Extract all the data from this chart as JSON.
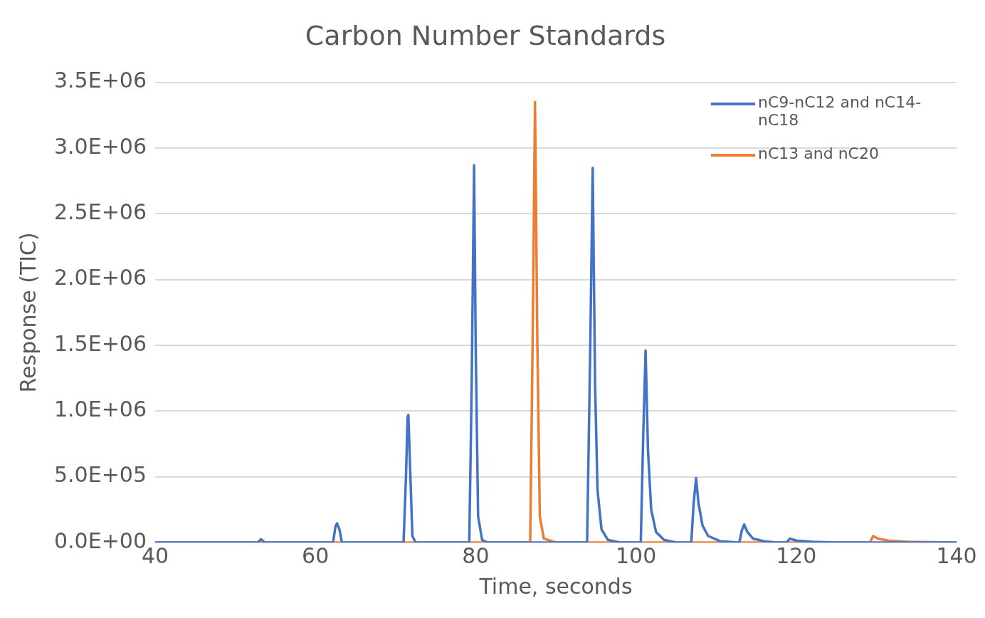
{
  "chart_data": {
    "type": "line",
    "title": "Carbon Number Standards",
    "xlabel": "Time, seconds",
    "ylabel": "Response (TIC)",
    "xlim": [
      40,
      140
    ],
    "xticks": [
      40,
      60,
      80,
      100,
      120,
      140
    ],
    "ylim": [
      0,
      3500000
    ],
    "yticks": [
      {
        "value": 0,
        "label": "0.0E+00"
      },
      {
        "value": 500000,
        "label": "5.0E+05"
      },
      {
        "value": 1000000,
        "label": "1.0E+06"
      },
      {
        "value": 1500000,
        "label": "1.5E+06"
      },
      {
        "value": 2000000,
        "label": "2.0E+06"
      },
      {
        "value": 2500000,
        "label": "2.5E+06"
      },
      {
        "value": 3000000,
        "label": "3.0E+06"
      },
      {
        "value": 3500000,
        "label": "3.5E+06"
      }
    ],
    "grid": "y",
    "legend": "top right",
    "marker": "none",
    "line_style": "solid",
    "series": [
      {
        "name": "nC9-nC12 and nC14-nC18",
        "color": "#4472c4",
        "x": [
          40,
          52.8,
          53.2,
          53.7,
          62.2,
          62.5,
          62.7,
          63.0,
          63.3,
          71.0,
          71.3,
          71.5,
          71.6,
          71.8,
          72.1,
          72.5,
          79.2,
          79.5,
          79.8,
          80.0,
          80.3,
          80.8,
          81.5,
          93.9,
          94.3,
          94.6,
          94.9,
          95.2,
          95.7,
          96.5,
          98,
          100.6,
          100.9,
          101.2,
          101.5,
          101.9,
          102.5,
          103.5,
          105,
          106.9,
          107.2,
          107.5,
          107.8,
          108.3,
          109,
          110.5,
          112.9,
          113.2,
          113.5,
          113.9,
          114.6,
          116,
          117.5,
          118.8,
          119.2,
          120,
          122,
          125,
          140
        ],
        "values": [
          0,
          0,
          25000,
          0,
          0,
          120000,
          146000,
          100000,
          0,
          0,
          500000,
          950000,
          970000,
          600000,
          50000,
          0,
          0,
          1200000,
          2870000,
          1500000,
          200000,
          20000,
          0,
          0,
          1500000,
          2850000,
          1200000,
          400000,
          100000,
          20000,
          0,
          0,
          800000,
          1460000,
          700000,
          250000,
          80000,
          20000,
          0,
          0,
          300000,
          490000,
          300000,
          130000,
          50000,
          10000,
          0,
          90000,
          137000,
          80000,
          30000,
          10000,
          0,
          0,
          30000,
          15000,
          5000,
          0,
          0
        ]
      },
      {
        "name": "nC13 and nC20",
        "color": "#ed7d31",
        "x": [
          40,
          86.8,
          87.1,
          87.4,
          87.7,
          88.0,
          88.5,
          90,
          129.2,
          129.6,
          130.2,
          131.5,
          134,
          140
        ],
        "values": [
          0,
          0,
          1500000,
          3350000,
          1500000,
          200000,
          30000,
          0,
          0,
          50000,
          30000,
          15000,
          5000,
          0
        ]
      }
    ]
  }
}
